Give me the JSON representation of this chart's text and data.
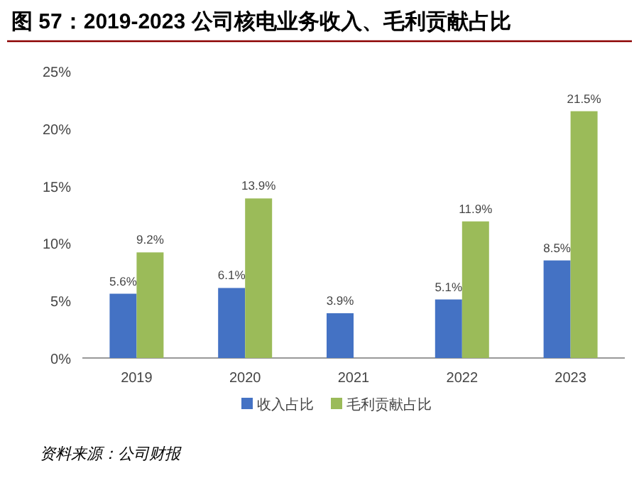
{
  "chart_data": {
    "type": "bar",
    "title": "图 57：2019-2023 公司核电业务收入、毛利贡献占比",
    "categories": [
      "2019",
      "2020",
      "2021",
      "2022",
      "2023"
    ],
    "series": [
      {
        "name": "收入占比",
        "color": "#4472c4",
        "values": [
          5.6,
          6.1,
          3.9,
          5.1,
          8.5
        ],
        "value_labels": [
          "5.6%",
          "6.1%",
          "3.9%",
          "5.1%",
          "8.5%"
        ]
      },
      {
        "name": "毛利贡献占比",
        "color": "#9bbb59",
        "values": [
          9.2,
          13.9,
          null,
          11.9,
          21.5
        ],
        "value_labels": [
          "9.2%",
          "13.9%",
          null,
          "11.9%",
          "21.5%"
        ]
      }
    ],
    "ylim": [
      0,
      25
    ],
    "yticks": [
      {
        "value": 0,
        "label": "0%"
      },
      {
        "value": 5,
        "label": "5%"
      },
      {
        "value": 10,
        "label": "10%"
      },
      {
        "value": 15,
        "label": "15%"
      },
      {
        "value": 20,
        "label": "20%"
      },
      {
        "value": 25,
        "label": "25%"
      }
    ],
    "grid": false,
    "legend": "bottom",
    "annotations": [
      "资料来源：公司财报"
    ]
  }
}
